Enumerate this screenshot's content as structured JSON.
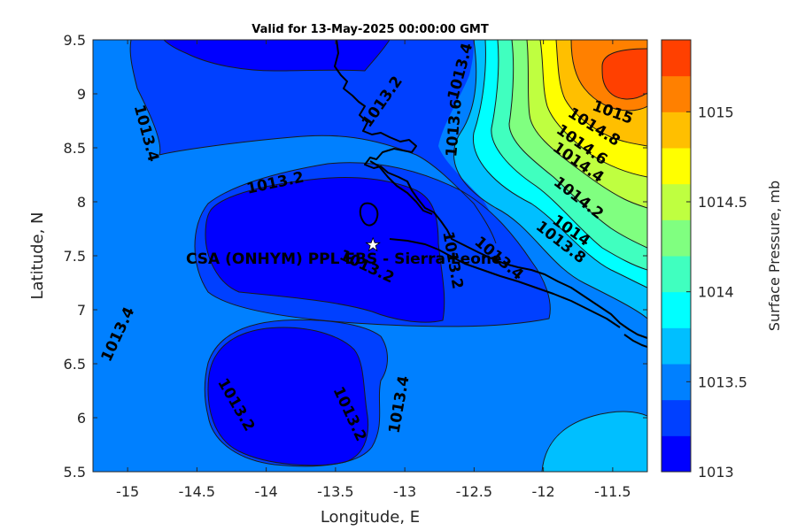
{
  "title": "Valid for 13-May-2025 00:00:00 GMT",
  "xlabel": "Longitude, E",
  "ylabel": "Latitude, N",
  "colorbar_label": "Surface Pressure, mb",
  "site_label": "CSA (ONHYM) PPL EBS - Sierra Leone",
  "site": {
    "lon": -13.23,
    "lat": 7.6
  },
  "x_ticks": [
    {
      "v": -15,
      "t": "-15"
    },
    {
      "v": -14.5,
      "t": "-14.5"
    },
    {
      "v": -14,
      "t": "-14"
    },
    {
      "v": -13.5,
      "t": "-13.5"
    },
    {
      "v": -13,
      "t": "-13"
    },
    {
      "v": -12.5,
      "t": "-12.5"
    },
    {
      "v": -12,
      "t": "-12"
    },
    {
      "v": -11.5,
      "t": "-11.5"
    }
  ],
  "y_ticks": [
    {
      "v": 5.5,
      "t": "5.5"
    },
    {
      "v": 6,
      "t": "6"
    },
    {
      "v": 6.5,
      "t": "6.5"
    },
    {
      "v": 7,
      "t": "7"
    },
    {
      "v": 7.5,
      "t": "7.5"
    },
    {
      "v": 8,
      "t": "8"
    },
    {
      "v": 8.5,
      "t": "8.5"
    },
    {
      "v": 9,
      "t": "9"
    },
    {
      "v": 9.5,
      "t": "9.5"
    }
  ],
  "colorbar_ticks": [
    {
      "v": 1013,
      "t": "1013"
    },
    {
      "v": 1013.5,
      "t": "1013.5"
    },
    {
      "v": 1014,
      "t": "1014"
    },
    {
      "v": 1014.5,
      "t": "1014.5"
    },
    {
      "v": 1015,
      "t": "1015"
    }
  ],
  "chart_data": {
    "type": "heatmap",
    "xlim": [
      -15.25,
      -11.25
    ],
    "ylim": [
      5.5,
      9.5
    ],
    "clim": [
      1013,
      1015.4
    ],
    "levels": [
      1013,
      1013.2,
      1013.4,
      1013.6,
      1013.8,
      1014,
      1014.2,
      1014.4,
      1014.6,
      1014.8,
      1015,
      1015.2,
      1015.4
    ],
    "level_colors": [
      "#0000ff",
      "#0040ff",
      "#0080ff",
      "#00bfff",
      "#00ffff",
      "#40ffbf",
      "#80ff80",
      "#bfff40",
      "#ffff00",
      "#ffbf00",
      "#ff8000",
      "#ff4000"
    ],
    "contour_labels": [
      {
        "text": "1013.2",
        "lon": -14.05,
        "lat": 8.15
      },
      {
        "text": "1013.2",
        "lon": -13.1,
        "lat": 8.95
      },
      {
        "text": "1013.2",
        "lon": -13.3,
        "lat": 7.42
      },
      {
        "text": "1013.2",
        "lon": -12.6,
        "lat": 7.28
      },
      {
        "text": "1013.2",
        "lon": -14.2,
        "lat": 6.15
      },
      {
        "text": "1013.2",
        "lon": -13.55,
        "lat": 6.05
      },
      {
        "text": "1013.4",
        "lon": -14.95,
        "lat": 8.65
      },
      {
        "text": "1013.4",
        "lon": -15.05,
        "lat": 6.72
      },
      {
        "text": "1013.4",
        "lon": -12.65,
        "lat": 9.25
      },
      {
        "text": "1013.4",
        "lon": -13.03,
        "lat": 6.1
      },
      {
        "text": "1013.4",
        "lon": -12.35,
        "lat": 7.45
      },
      {
        "text": "1013.6",
        "lon": -12.5,
        "lat": 8.7
      },
      {
        "text": "1013.8",
        "lon": -11.9,
        "lat": 7.65
      },
      {
        "text": "1014",
        "lon": -11.8,
        "lat": 7.8
      },
      {
        "text": "1014.2",
        "lon": -11.8,
        "lat": 8.05
      },
      {
        "text": "1014.4",
        "lon": -11.75,
        "lat": 8.45
      },
      {
        "text": "1014.6",
        "lon": -11.7,
        "lat": 8.65
      },
      {
        "text": "1014.8",
        "lon": -11.65,
        "lat": 8.8
      },
      {
        "text": "1015",
        "lon": -11.5,
        "lat": 8.85
      }
    ]
  }
}
